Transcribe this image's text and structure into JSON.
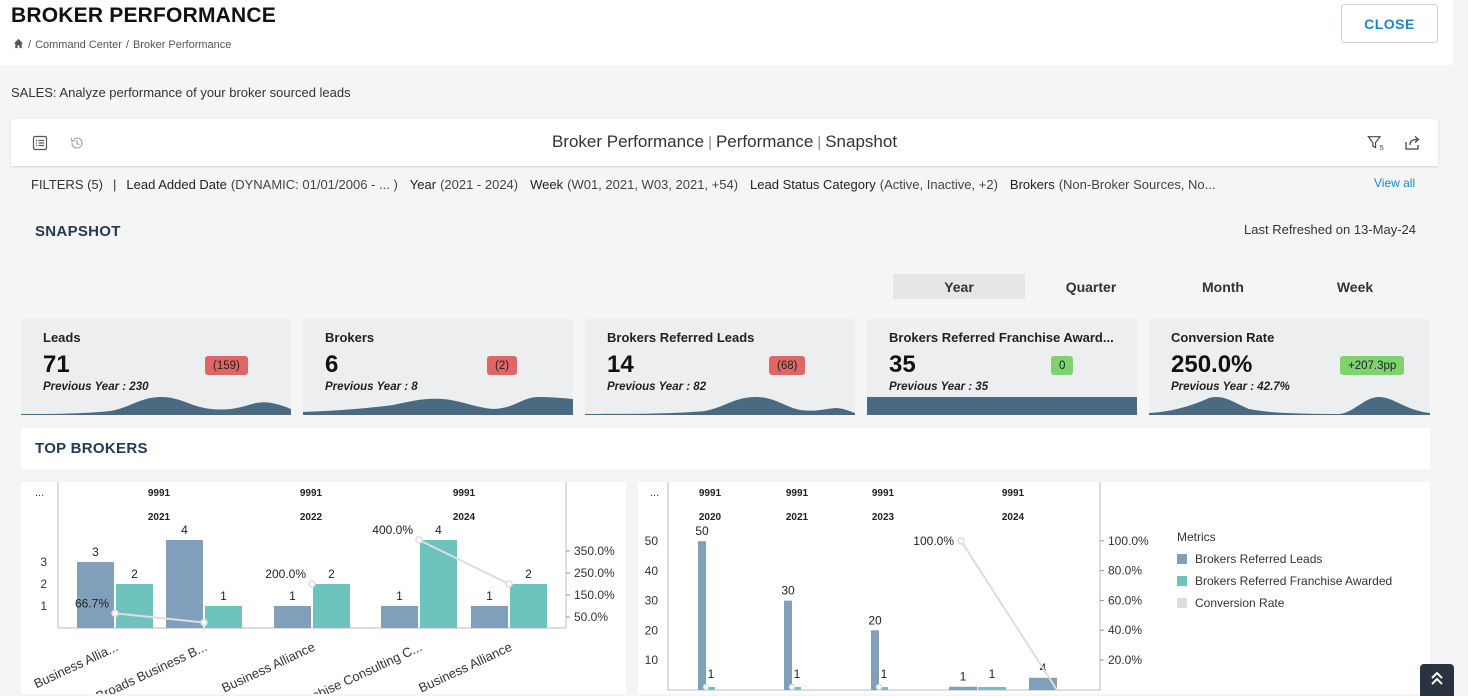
{
  "page": {
    "title": "BROKER PERFORMANCE",
    "breadcrumb": [
      "Command Center",
      "Broker Performance"
    ],
    "close_label": "CLOSE",
    "subtitle": "SALES: Analyze performance of your broker sourced leads"
  },
  "report": {
    "title_parts": [
      "Broker Performance",
      "Performance",
      "Snapshot"
    ],
    "filter_count": "5"
  },
  "filters": {
    "summary": "FILTERS (5)",
    "divider": "|",
    "items": [
      {
        "label": "Lead Added Date",
        "value": "(DYNAMIC: 01/01/2006 - ... )"
      },
      {
        "label": "Year",
        "value": "(2021 - 2024)"
      },
      {
        "label": "Week",
        "value": "(W01, 2021, W03, 2021, +54)"
      },
      {
        "label": "Lead Status Category",
        "value": "(Active, Inactive, +2)"
      },
      {
        "label": "Brokers",
        "value": "(Non-Broker Sources, No..."
      }
    ],
    "view_all": "View all"
  },
  "snapshot": {
    "title": "SNAPSHOT",
    "refreshed": "Last Refreshed on 13-May-24",
    "period_tabs": [
      "Year",
      "Quarter",
      "Month",
      "Week"
    ],
    "active_tab": "Year"
  },
  "kpis": [
    {
      "label": "Leads",
      "value": "71",
      "prev": "Previous Year : 230",
      "badge": "(159)",
      "badge_color": "red"
    },
    {
      "label": "Brokers",
      "value": "6",
      "prev": "Previous Year : 8",
      "badge": "(2)",
      "badge_color": "red"
    },
    {
      "label": "Brokers Referred Leads",
      "value": "14",
      "prev": "Previous Year : 82",
      "badge": "(68)",
      "badge_color": "red"
    },
    {
      "label": "Brokers Referred Franchise Award...",
      "value": "35",
      "prev": "Previous Year : 35",
      "badge": "0",
      "badge_color": "green"
    },
    {
      "label": "Conversion Rate",
      "value": "250.0%",
      "prev": "Previous Year : 42.7%",
      "badge": "+207.3pp",
      "badge_color": "green"
    }
  ],
  "top_brokers": {
    "title": "TOP BROKERS"
  },
  "colors": {
    "leads": "#7f9fba",
    "franchise": "#6fc3be",
    "conversion": "#dddddd",
    "sparkline": "#4a6a82",
    "accent": "#1a86d0"
  },
  "chart_data": [
    {
      "type": "bar",
      "menu": "...",
      "groups": [
        {
          "id": "9991",
          "year": "2021",
          "categories": [
            "Business Allia...",
            "Broads Business B..."
          ]
        },
        {
          "id": "9991",
          "year": "2022",
          "categories": [
            "Business Alliance"
          ]
        },
        {
          "id": "9991",
          "year": "2024",
          "categories": [
            "Franchise Consulting C...",
            "Business Alliance"
          ]
        }
      ],
      "categories": [
        "Business Allia...",
        "Broads Business B...",
        "Business Alliance",
        "Franchise Consulting C...",
        "Business Alliance"
      ],
      "series": [
        {
          "name": "Brokers Referred Leads",
          "values": [
            3,
            4,
            1,
            1,
            1
          ]
        },
        {
          "name": "Brokers Referred Franchise Awarded",
          "values": [
            2,
            1,
            2,
            4,
            2
          ]
        },
        {
          "name": "Conversion Rate",
          "values": [
            66.7,
            25.0,
            200.0,
            400.0,
            200.0
          ],
          "axis": "right"
        }
      ],
      "y_ticks": [
        "1",
        "2",
        "3"
      ],
      "y2_ticks": [
        "50.0%",
        "150.0%",
        "250.0%",
        "350.0%"
      ],
      "point_labels": [
        {
          "index": 0,
          "label": "66.7%"
        },
        {
          "index": 2,
          "label": "200.0%"
        },
        {
          "index": 3,
          "label": "400.0%"
        }
      ]
    },
    {
      "type": "bar",
      "menu": "...",
      "groups": [
        {
          "id": "9991",
          "year": "2020"
        },
        {
          "id": "9991",
          "year": "2021"
        },
        {
          "id": "9991",
          "year": "2023"
        },
        {
          "id": "9991",
          "year": "2024"
        }
      ],
      "series": [
        {
          "name": "Brokers Referred Leads",
          "values": [
            50,
            30,
            20,
            1,
            4
          ]
        },
        {
          "name": "Brokers Referred Franchise Awarded",
          "values": [
            1,
            1,
            1,
            1,
            0
          ]
        },
        {
          "name": "Conversion Rate",
          "values": [
            2,
            3.3,
            5,
            100.0,
            0
          ],
          "axis": "right"
        }
      ],
      "y_ticks": [
        "10",
        "20",
        "30",
        "40",
        "50"
      ],
      "y2_ticks": [
        "20.0%",
        "40.0%",
        "60.0%",
        "80.0%",
        "100.0%"
      ],
      "point_labels": [
        {
          "index": 3,
          "label": "100.0%"
        }
      ],
      "legend": {
        "title": "Metrics",
        "items": [
          "Brokers Referred Leads",
          "Brokers Referred Franchise Awarded",
          "Conversion Rate"
        ]
      }
    }
  ]
}
